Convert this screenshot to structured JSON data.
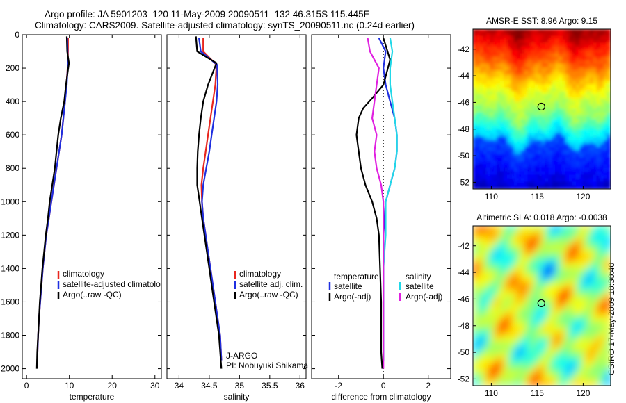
{
  "header": {
    "line1": "Argo profile: JA 5901203_120 11-May-2009 20090511_132 46.315S 115.445E",
    "line2": "Climatology: CARS2009. Satellite-adjusted climatology: synTS_20090511.nc (0.24d earlier)"
  },
  "side_caption": "CSIRO 17-May-2009 10:30:40",
  "colors": {
    "climatology": "#e8261e",
    "satellite": "#1f2fe0",
    "argo": "#000000",
    "satellite_salinity": "#22d8e8",
    "argo_salinity": "#e020e0"
  },
  "chart_data": [
    {
      "type": "line",
      "xlabel": "temperature",
      "xlim": [
        -1,
        31.5
      ],
      "xticks": [
        0,
        10,
        20,
        30
      ],
      "ylim": [
        2060,
        0
      ],
      "yticks": [
        0,
        200,
        400,
        600,
        800,
        1000,
        1200,
        1400,
        1600,
        1800,
        2000
      ],
      "legend": {
        "position": "lower-right",
        "entries": [
          "climatology",
          "satellite-adjusted climatolo",
          "Argo(..raw -QC)"
        ]
      },
      "series": [
        {
          "name": "climatology",
          "color": "#e8261e",
          "x": [
            9.7,
            9.7,
            9.6,
            9.3,
            9.0,
            8.6,
            8.2,
            7.6,
            7.0,
            6.4,
            5.8,
            5.2,
            4.6,
            4.2,
            3.8,
            3.5,
            3.2,
            2.9,
            2.7,
            2.5
          ],
          "y": [
            20,
            100,
            200,
            300,
            400,
            500,
            600,
            700,
            800,
            900,
            1000,
            1100,
            1200,
            1300,
            1400,
            1500,
            1600,
            1700,
            1800,
            1950
          ]
        },
        {
          "name": "satellite-adjusted climatolo",
          "color": "#1f2fe0",
          "x": [
            9.5,
            9.6,
            9.6,
            9.4,
            9.0,
            8.6,
            8.2,
            7.6,
            7.0,
            6.4,
            5.8,
            5.2,
            4.6,
            4.2,
            3.8,
            3.5,
            3.2,
            2.9,
            2.7,
            2.5
          ],
          "y": [
            20,
            100,
            200,
            300,
            400,
            500,
            600,
            700,
            800,
            900,
            1000,
            1100,
            1200,
            1300,
            1400,
            1500,
            1600,
            1700,
            1800,
            1950
          ]
        },
        {
          "name": "Argo(..raw -QC)",
          "color": "#000000",
          "x": [
            9.4,
            9.5,
            9.9,
            9.2,
            8.8,
            8.0,
            7.4,
            7.0,
            6.6,
            6.0,
            5.4,
            5.0,
            4.5,
            4.1,
            3.7,
            3.4,
            3.1,
            2.9,
            2.7,
            2.5,
            2.4
          ],
          "y": [
            10,
            100,
            170,
            300,
            400,
            500,
            600,
            700,
            800,
            900,
            1000,
            1100,
            1200,
            1300,
            1400,
            1500,
            1600,
            1700,
            1800,
            1900,
            2000
          ]
        }
      ]
    },
    {
      "type": "line",
      "xlabel": "salinity",
      "xlim": [
        33.8,
        36.1
      ],
      "xticks": [
        34,
        34.5,
        35,
        35.5,
        36
      ],
      "ylim": [
        2060,
        0
      ],
      "legend": {
        "position": "lower-right",
        "entries": [
          "climatology",
          "satellite adj. clim.",
          "Argo(..raw -QC)"
        ]
      },
      "annotations": [
        "J-ARGO",
        "PI: Nobuyuki Shikama"
      ],
      "series": [
        {
          "name": "climatology",
          "color": "#e8261e",
          "x": [
            34.4,
            34.4,
            34.62,
            34.6,
            34.56,
            34.52,
            34.48,
            34.44,
            34.4,
            34.37,
            34.38,
            34.4,
            34.44,
            34.48,
            34.52,
            34.56,
            34.6,
            34.64,
            34.68,
            34.7
          ],
          "y": [
            20,
            100,
            180,
            300,
            400,
            500,
            600,
            700,
            800,
            900,
            1000,
            1100,
            1200,
            1300,
            1400,
            1500,
            1600,
            1700,
            1800,
            1950
          ]
        },
        {
          "name": "satellite adj. clim.",
          "color": "#1f2fe0",
          "x": [
            34.33,
            34.36,
            34.63,
            34.64,
            34.62,
            34.58,
            34.54,
            34.5,
            34.45,
            34.4,
            34.38,
            34.4,
            34.44,
            34.48,
            34.52,
            34.56,
            34.6,
            34.64,
            34.68,
            34.7
          ],
          "y": [
            20,
            100,
            180,
            300,
            400,
            500,
            600,
            700,
            800,
            900,
            1000,
            1100,
            1200,
            1300,
            1400,
            1500,
            1600,
            1700,
            1800,
            1950
          ]
        },
        {
          "name": "Argo(..raw -QC)",
          "color": "#000000",
          "x": [
            34.28,
            34.3,
            34.62,
            34.48,
            34.4,
            34.36,
            34.33,
            34.31,
            34.3,
            34.3,
            34.34,
            34.38,
            34.42,
            34.46,
            34.5,
            34.54,
            34.58,
            34.62,
            34.66,
            34.7
          ],
          "y": [
            10,
            100,
            170,
            300,
            400,
            500,
            600,
            700,
            800,
            900,
            1000,
            1100,
            1200,
            1300,
            1400,
            1500,
            1600,
            1700,
            1800,
            2000
          ]
        }
      ]
    },
    {
      "type": "line",
      "xlabel": "difference from climatology",
      "xlim": [
        -3.2,
        3.0
      ],
      "xticks": [
        -2,
        0,
        2
      ],
      "ylim": [
        2060,
        0
      ],
      "legend": {
        "position": "lower",
        "entries": [
          "temperature",
          "satellite",
          "Argo(-adj)",
          "salinity",
          "satellite",
          "Argo(-adj)"
        ]
      },
      "series": [
        {
          "name": "temperature satellite",
          "color": "#1f2fe0",
          "x": [
            -0.2,
            0.1,
            0.0,
            0.1,
            0.3,
            0.5,
            0.6,
            0.6,
            0.5,
            0.3,
            0.1,
            0.0,
            0.0,
            0.0,
            0.0,
            0.0,
            0.0,
            0.0
          ],
          "y": [
            20,
            100,
            200,
            300,
            400,
            500,
            600,
            700,
            800,
            900,
            1000,
            1200,
            1400,
            1500,
            1600,
            1700,
            1800,
            1950
          ]
        },
        {
          "name": "temperature Argo(-adj)",
          "color": "#000000",
          "x": [
            0.0,
            0.3,
            0.0,
            -0.5,
            -0.9,
            -1.1,
            -1.2,
            -1.1,
            -1.0,
            -0.8,
            -0.5,
            -0.3,
            -0.2,
            -0.15,
            -0.1,
            -0.1,
            -0.1,
            -0.05
          ],
          "y": [
            20,
            150,
            300,
            380,
            440,
            500,
            600,
            700,
            800,
            900,
            1000,
            1100,
            1200,
            1400,
            1600,
            1800,
            1900,
            2000
          ]
        },
        {
          "name": "salinity satellite",
          "color": "#22d8e8",
          "x": [
            0.3,
            0.4,
            0.3,
            0.3,
            0.4,
            0.5,
            0.6,
            0.6,
            0.5,
            0.3,
            0.1,
            0.1,
            0.0,
            0.0,
            0.0,
            0.0,
            0.0
          ],
          "y": [
            20,
            100,
            200,
            300,
            400,
            500,
            600,
            700,
            800,
            900,
            1000,
            1200,
            1400,
            1600,
            1700,
            1800,
            1950
          ]
        },
        {
          "name": "salinity Argo(-adj)",
          "color": "#e020e0",
          "x": [
            -0.7,
            -0.6,
            -0.2,
            -0.3,
            -0.4,
            -0.5,
            -0.3,
            -0.4,
            -0.3,
            -0.1,
            0.0,
            0.0,
            0.0,
            0.0
          ],
          "y": [
            20,
            100,
            200,
            300,
            400,
            500,
            600,
            700,
            800,
            900,
            1000,
            1200,
            1500,
            2000
          ]
        }
      ]
    },
    {
      "type": "heatmap",
      "title": "AMSR-E SST: 8.96 Argo: 9.15",
      "xlim": [
        108,
        123
      ],
      "xticks": [
        110,
        115,
        120
      ],
      "ylim": [
        -52.5,
        -40.5
      ],
      "yticks": [
        -42,
        -44,
        -46,
        -48,
        -50,
        -52
      ],
      "marker": {
        "lon": 115.445,
        "lat": -46.315
      }
    },
    {
      "type": "heatmap",
      "title": "Altimetric SLA: 0.018 Argo: -0.0038",
      "xlim": [
        108,
        123
      ],
      "xticks": [
        110,
        115,
        120
      ],
      "ylim": [
        -52.5,
        -40.5
      ],
      "yticks": [
        -42,
        -44,
        -46,
        -48,
        -50,
        -52
      ],
      "marker": {
        "lon": 115.445,
        "lat": -46.315
      }
    }
  ]
}
